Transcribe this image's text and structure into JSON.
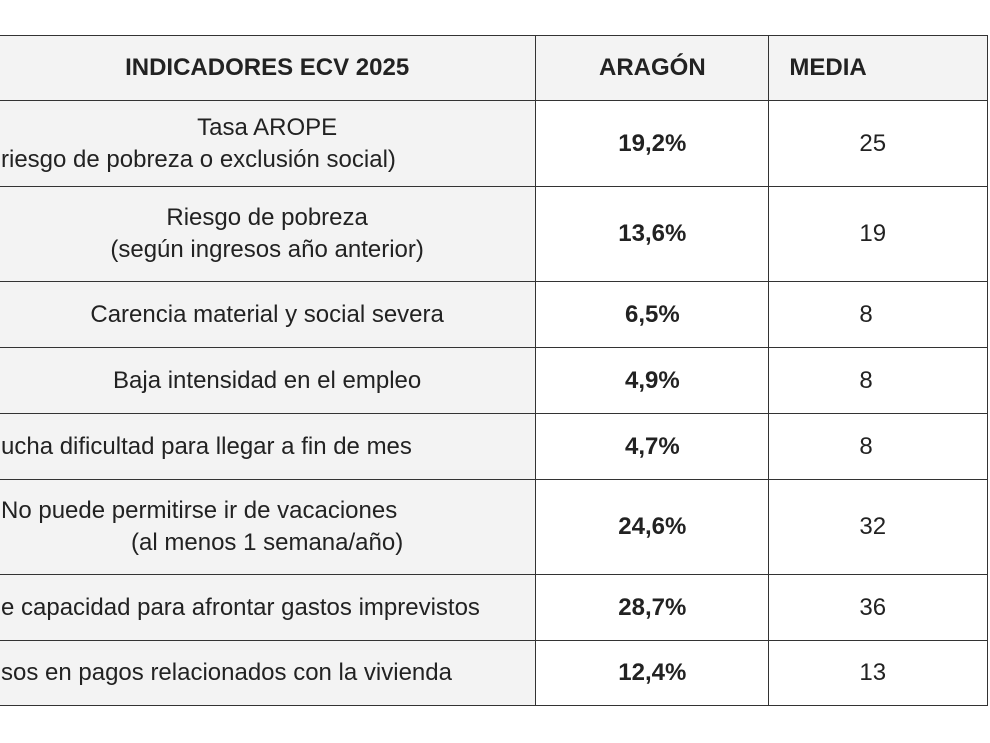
{
  "table": {
    "header": [
      "INDICADORES ECV 2025",
      "ARAGÓN",
      "MEDIA"
    ],
    "rows": [
      [
        [
          "Tasa AROPE",
          "riesgo de pobreza o exclusión social)"
        ],
        "19,2%",
        "25"
      ],
      [
        [
          "Riesgo de pobreza",
          "(según ingresos año anterior)"
        ],
        "13,6%",
        "19"
      ],
      [
        [
          "Carencia material y social severa"
        ],
        "6,5%",
        "8"
      ],
      [
        [
          "Baja intensidad en el empleo"
        ],
        "4,9%",
        "8"
      ],
      [
        [
          "ucha dificultad para llegar a fin de mes"
        ],
        "4,7%",
        "8"
      ],
      [
        [
          "No puede permitirse ir de vacaciones",
          "(al menos 1 semana/año)"
        ],
        "24,6%",
        "32"
      ],
      [
        [
          "e capacidad para afrontar gastos imprevistos"
        ],
        "28,7%",
        "36"
      ],
      [
        [
          "sos en pagos relacionados con la vivienda"
        ],
        "12,4%",
        "13"
      ]
    ]
  }
}
